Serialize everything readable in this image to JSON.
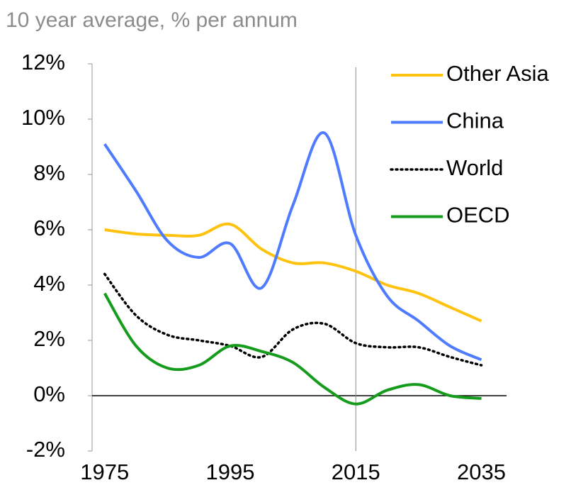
{
  "chart_data": {
    "type": "line",
    "subtitle": "10 year average, % per annum",
    "x": [
      1975,
      1980,
      1985,
      1990,
      1995,
      2000,
      2005,
      2010,
      2015,
      2020,
      2025,
      2030,
      2035
    ],
    "series": [
      {
        "name": "Other Asia",
        "color": "#ffc20e",
        "style": "solid",
        "values": [
          6.0,
          5.85,
          5.8,
          5.8,
          6.2,
          5.3,
          4.8,
          4.8,
          4.5,
          4.0,
          3.7,
          3.2,
          2.7
        ]
      },
      {
        "name": "China",
        "color": "#4f7cff",
        "style": "solid",
        "values": [
          9.1,
          7.4,
          5.6,
          5.0,
          5.5,
          3.9,
          6.9,
          9.5,
          5.8,
          3.6,
          2.7,
          1.8,
          1.3
        ]
      },
      {
        "name": "World",
        "color": "#000000",
        "style": "dotted",
        "values": [
          4.4,
          2.9,
          2.2,
          2.0,
          1.8,
          1.4,
          2.4,
          2.6,
          1.9,
          1.75,
          1.75,
          1.4,
          1.1
        ]
      },
      {
        "name": "OECD",
        "color": "#159c1c",
        "style": "solid",
        "values": [
          3.7,
          1.8,
          1.0,
          1.1,
          1.8,
          1.6,
          1.2,
          0.3,
          -0.3,
          0.2,
          0.4,
          0.0,
          -0.1
        ]
      }
    ],
    "xlim": [
      1973,
      2039
    ],
    "xticks": [
      1975,
      1995,
      2015,
      2035
    ],
    "ylim": [
      -2,
      12
    ],
    "yticks": [
      {
        "value": -2,
        "label": "-2%"
      },
      {
        "value": 0,
        "label": "0%"
      },
      {
        "value": 2,
        "label": "2%"
      },
      {
        "value": 4,
        "label": "4%"
      },
      {
        "value": 6,
        "label": "6%"
      },
      {
        "value": 8,
        "label": "8%"
      },
      {
        "value": 10,
        "label": "10%"
      },
      {
        "value": 12,
        "label": "12%"
      }
    ],
    "vline": 2015,
    "legend": "top-right"
  }
}
